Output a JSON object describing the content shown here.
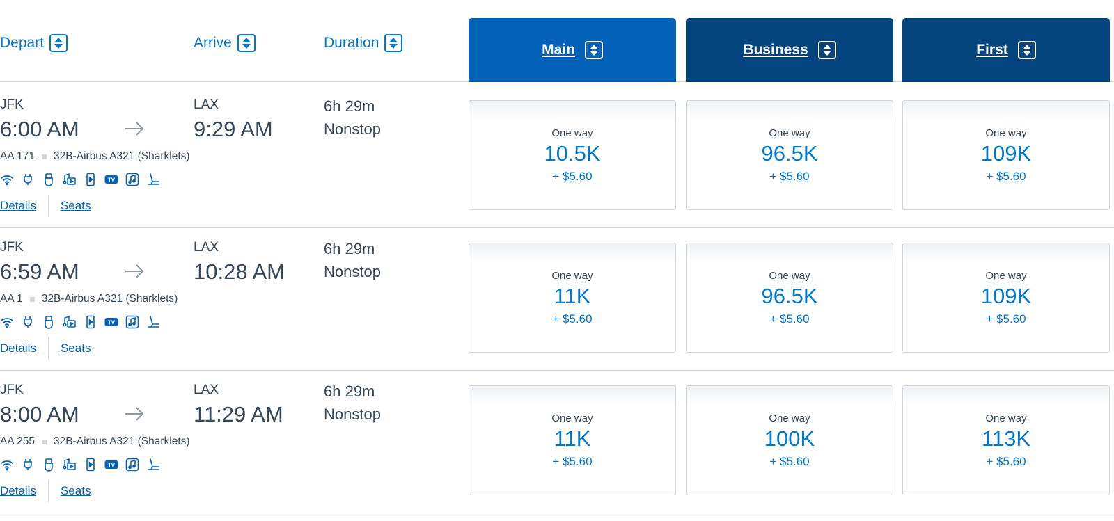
{
  "header": {
    "depart_label": "Depart",
    "arrive_label": "Arrive",
    "duration_label": "Duration",
    "cabins": [
      "Main",
      "Business",
      "First"
    ]
  },
  "colors": {
    "accent": "#0078d2",
    "main_cabin": "#0461b8",
    "premium_cabin": "#04457f",
    "text": "#36495a"
  },
  "amenity_icons": [
    "wifi-icon",
    "power-outlet-icon",
    "usb-icon",
    "entertainment-icon",
    "device-streaming-icon",
    "tv-icon",
    "music-icon",
    "lie-flat-seat-icon"
  ],
  "links": {
    "details": "Details",
    "seats": "Seats"
  },
  "flights": [
    {
      "from": "JFK",
      "depart_time": "6:00 AM",
      "to": "LAX",
      "arrive_time": "9:29 AM",
      "duration": "6h 29m",
      "stops": "Nonstop",
      "flight_number": "AA 171",
      "aircraft": "32B-Airbus A321 (Sharklets)",
      "fares": [
        {
          "label": "One way",
          "miles": "10.5K",
          "tax": "+ $5.60"
        },
        {
          "label": "One way",
          "miles": "96.5K",
          "tax": "+ $5.60"
        },
        {
          "label": "One way",
          "miles": "109K",
          "tax": "+ $5.60"
        }
      ]
    },
    {
      "from": "JFK",
      "depart_time": "6:59 AM",
      "to": "LAX",
      "arrive_time": "10:28 AM",
      "duration": "6h 29m",
      "stops": "Nonstop",
      "flight_number": "AA 1",
      "aircraft": "32B-Airbus A321 (Sharklets)",
      "fares": [
        {
          "label": "One way",
          "miles": "11K",
          "tax": "+ $5.60"
        },
        {
          "label": "One way",
          "miles": "96.5K",
          "tax": "+ $5.60"
        },
        {
          "label": "One way",
          "miles": "109K",
          "tax": "+ $5.60"
        }
      ]
    },
    {
      "from": "JFK",
      "depart_time": "8:00 AM",
      "to": "LAX",
      "arrive_time": "11:29 AM",
      "duration": "6h 29m",
      "stops": "Nonstop",
      "flight_number": "AA 255",
      "aircraft": "32B-Airbus A321 (Sharklets)",
      "fares": [
        {
          "label": "One way",
          "miles": "11K",
          "tax": "+ $5.60"
        },
        {
          "label": "One way",
          "miles": "100K",
          "tax": "+ $5.60"
        },
        {
          "label": "One way",
          "miles": "113K",
          "tax": "+ $5.60"
        }
      ]
    }
  ]
}
